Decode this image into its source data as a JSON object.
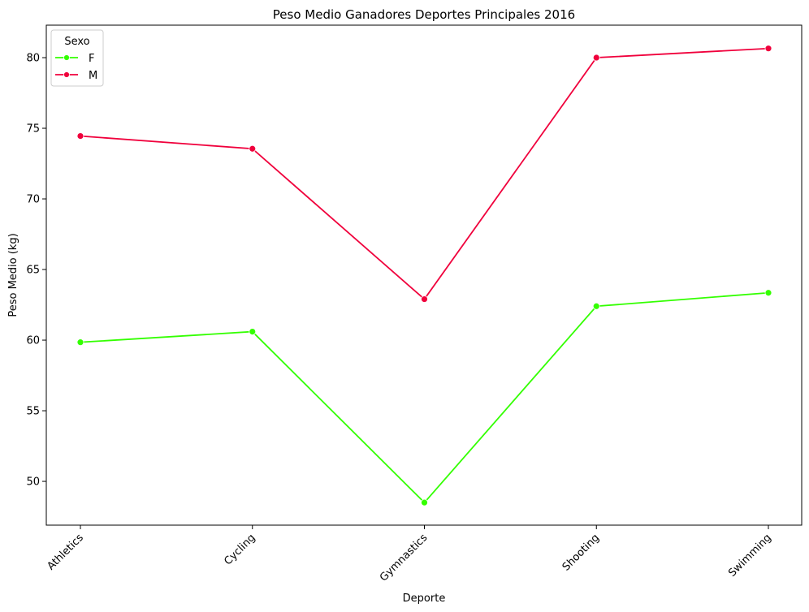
{
  "chart_data": {
    "type": "line",
    "title": "Peso Medio Ganadores Deportes Principales 2016",
    "xlabel": "Deporte",
    "ylabel": "Peso Medio (kg)",
    "categories": [
      "Athletics",
      "Cycling",
      "Gymnastics",
      "Shooting",
      "Swimming"
    ],
    "ylim": [
      46.9,
      82.3
    ],
    "yticks": [
      50,
      55,
      60,
      65,
      70,
      75,
      80
    ],
    "grid": false,
    "legend": {
      "title": "Sexo",
      "placement": "top-left"
    },
    "series": [
      {
        "name": "F",
        "color": "#33ff00",
        "values": [
          59.85,
          60.6,
          48.5,
          62.4,
          63.35
        ]
      },
      {
        "name": "M",
        "color": "#f0003c",
        "values": [
          74.45,
          73.55,
          62.9,
          80.0,
          80.65
        ]
      }
    ]
  }
}
